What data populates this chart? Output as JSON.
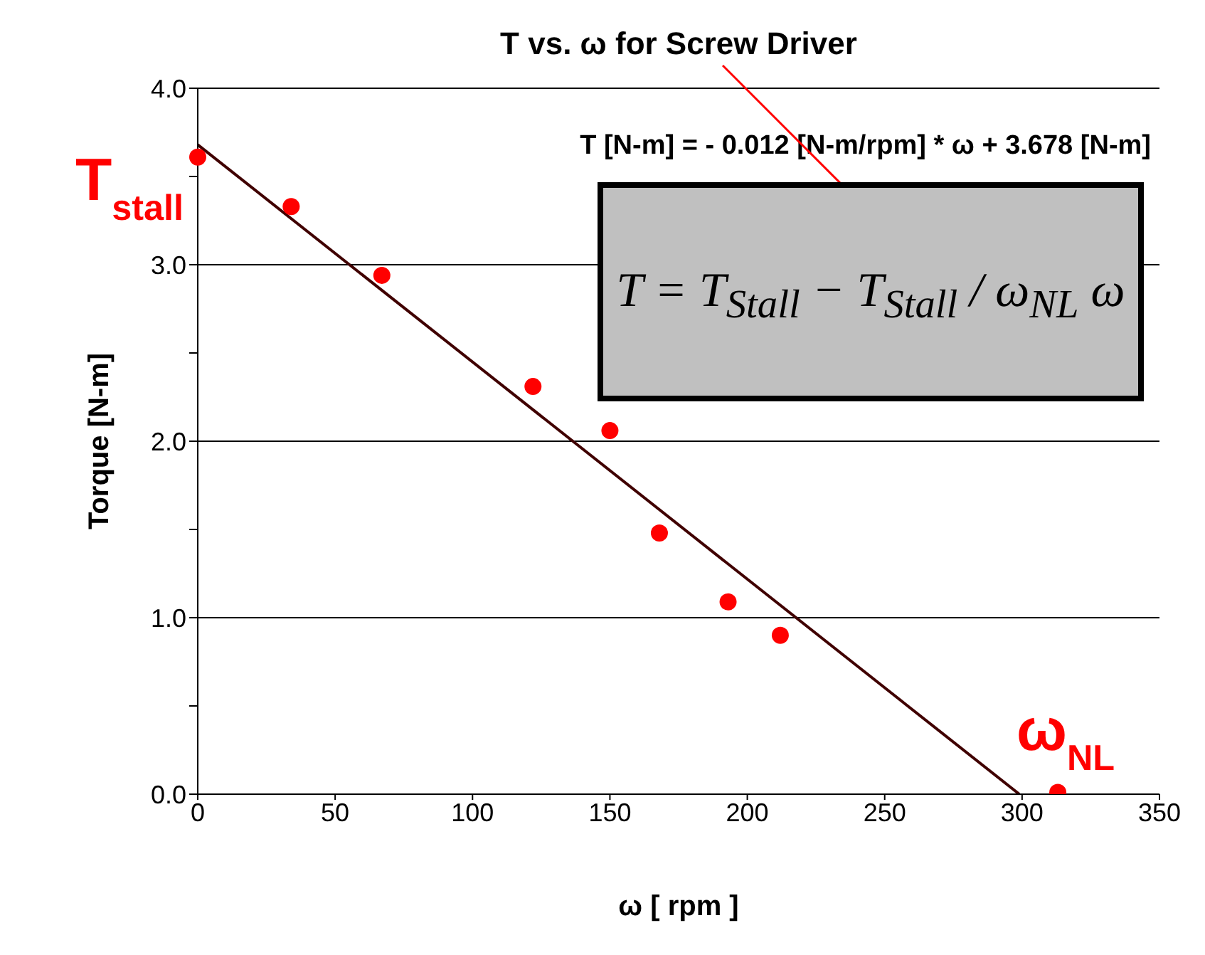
{
  "chart_data": {
    "type": "scatter",
    "title": "T vs. ω for Screw Driver",
    "xlabel": "ω [ rpm ]",
    "ylabel": "Torque [N-m]",
    "series": [
      {
        "color": "#ff0000",
        "x": [
          0,
          34,
          67,
          122,
          150,
          168,
          193,
          212,
          313
        ],
        "values": [
          3.61,
          3.33,
          2.94,
          2.31,
          2.06,
          1.48,
          1.09,
          0.9,
          0.01
        ]
      },
      {
        "type": "line",
        "marker": "none",
        "color": "#400000",
        "x": [
          0,
          299
        ],
        "values": [
          3.68,
          0
        ]
      }
    ],
    "xlim": [
      0,
      350
    ],
    "xticks": [
      0,
      50,
      100,
      150,
      200,
      250,
      300,
      350
    ],
    "ylim": [
      0,
      4
    ],
    "yticks": [
      {
        "value": 0,
        "label": "0.0"
      },
      {
        "value": 0.5,
        "label": null
      },
      {
        "value": 1,
        "label": "1.0"
      },
      {
        "value": 1.5,
        "label": null
      },
      {
        "value": 2,
        "label": "2.0"
      },
      {
        "value": 2.5,
        "label": null
      },
      {
        "value": 3,
        "label": "3.0"
      },
      {
        "value": 3.5,
        "label": null
      },
      {
        "value": 4,
        "label": "4.0"
      }
    ],
    "grid": "y",
    "marker": "circle",
    "line_style": "solid",
    "legend": false,
    "annotations": [
      {
        "text": "T$_{stall}$",
        "x": 0,
        "y": 3.61
      },
      {
        "text": "ω$_{NL}$",
        "x": 313,
        "y": 0.01
      },
      "T [N-m] = - 0.012 [N-m/rpm] * ω + 3.678 [N-m]",
      "T = T$_{Stall}$ − T$_{Stall}$ / ω$_{NL}$ ω"
    ]
  }
}
